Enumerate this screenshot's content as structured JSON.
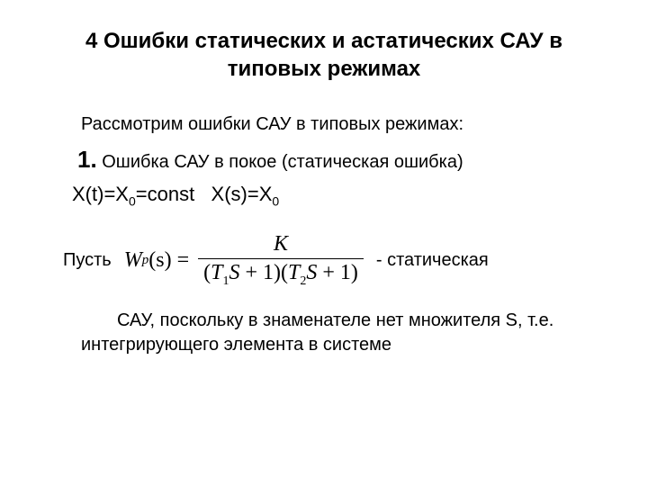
{
  "colors": {
    "background": "#ffffff",
    "text": "#000000"
  },
  "fonts": {
    "body_family": "Arial",
    "formula_family": "Times New Roman",
    "title_size_pt": 24,
    "body_size_pt": 20,
    "item_num_size_pt": 26,
    "formula_size_pt": 24
  },
  "title": "4 Ошибки статических и астатических САУ в типовых режимах",
  "intro": "Рассмотрим ошибки САУ в типовых режимах:",
  "item": {
    "num": "1.",
    "text": " Ошибка САУ в покое (статическая ошибка)"
  },
  "equations": {
    "eq1_pre": "X(t)=X",
    "eq1_sub": "0",
    "eq1_post": "=const",
    "gap": "   ",
    "eq2_pre": "X(s)=X",
    "eq2_sub": "0"
  },
  "formula": {
    "left_label": "Пусть",
    "lhs_W": "W",
    "lhs_sub": "p",
    "lhs_arg": "(s)",
    "eq": "=",
    "numerator": "K",
    "den_open": "(",
    "den_T1": "T",
    "den_T1_sub": "1",
    "den_S": "S",
    "den_plus1_a": " + 1)(",
    "den_T2": "T",
    "den_T2_sub": "2",
    "den_S2": "S",
    "den_plus1_b": " + 1)",
    "right_label": "- статическая"
  },
  "body": "САУ, поскольку в знаменателе нет множителя S, т.е. интегрирующего элемента в системе"
}
